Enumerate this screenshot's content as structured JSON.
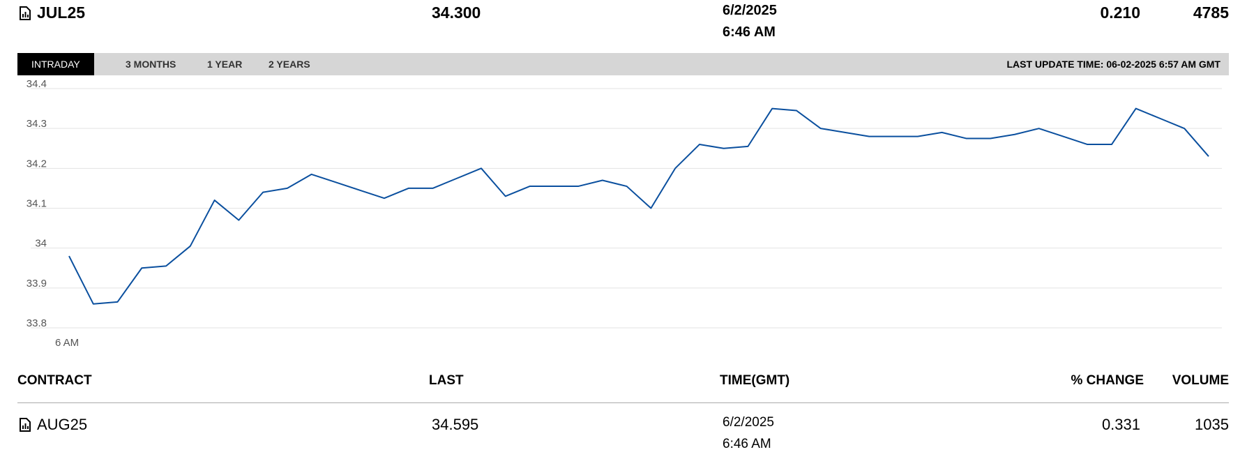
{
  "header": {
    "contract": "JUL25",
    "last": "34.300",
    "date": "6/2/2025",
    "time": "6:46 AM",
    "change": "0.210",
    "volume": "4785"
  },
  "tabs": [
    "INTRADAY",
    "3 MONTHS",
    "1 YEAR",
    "2 YEARS"
  ],
  "last_update": "LAST UPDATE TIME: 06-02-2025 6:57 AM GMT",
  "chart_data": {
    "type": "line",
    "categories": [
      "6 AM",
      null,
      null,
      null,
      null,
      null,
      null,
      null,
      null,
      null,
      null,
      null,
      null,
      null,
      null,
      null,
      null,
      null,
      null,
      null,
      null,
      null,
      null,
      null,
      null,
      null,
      null,
      null,
      null,
      null,
      null,
      null,
      null,
      null,
      null,
      null,
      null,
      null,
      null,
      null,
      null,
      null,
      null,
      null,
      null,
      null,
      null,
      null
    ],
    "series": [
      {
        "color": "#0a4f9e",
        "values": [
          33.98,
          33.86,
          33.865,
          33.95,
          33.955,
          34.005,
          34.12,
          34.07,
          34.14,
          34.15,
          34.185,
          34.165,
          34.145,
          34.125,
          34.15,
          34.15,
          34.175,
          34.2,
          34.13,
          34.155,
          34.155,
          34.155,
          34.17,
          34.155,
          34.1,
          34.2,
          34.26,
          34.25,
          34.255,
          34.35,
          34.345,
          34.3,
          34.29,
          34.28,
          34.28,
          34.28,
          34.29,
          34.275,
          34.275,
          34.285,
          34.3,
          34.28,
          34.26,
          34.26,
          34.35,
          34.325,
          34.3,
          34.23
        ]
      }
    ],
    "ylim": [
      33.8,
      34.4
    ],
    "yticks": [
      33.8,
      33.9,
      34,
      34.1,
      34.2,
      34.3,
      34.4
    ],
    "grid": true
  },
  "table": {
    "columns": [
      "CONTRACT",
      "LAST",
      "TIME(GMT)",
      "% CHANGE",
      "VOLUME"
    ],
    "rows": [
      [
        "AUG25",
        "34.595",
        "6/2/2025",
        "6:46 AM",
        "0.331",
        "1035"
      ]
    ]
  }
}
